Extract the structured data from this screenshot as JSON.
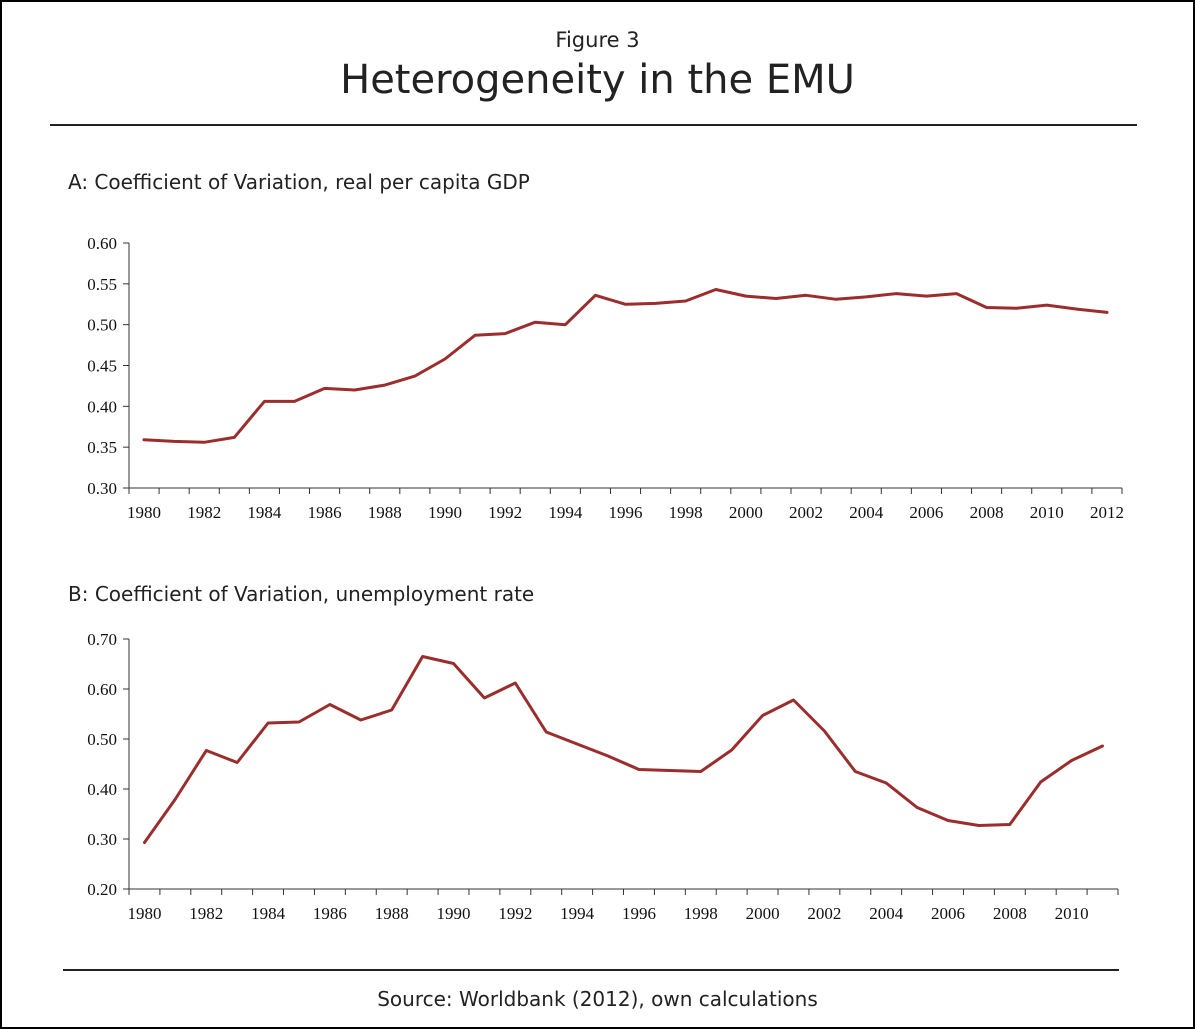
{
  "header": {
    "figure_label": "Figure 3",
    "title": "Heterogeneity in the EMU"
  },
  "footer": {
    "source": "Source: Worldbank (2012), own calculations"
  },
  "colors": {
    "series": "#9b2d2d"
  },
  "chart_data": [
    {
      "type": "line",
      "title": "A: Coefficient of Variation, real per capita GDP",
      "xlabel": "",
      "ylabel": "",
      "x": [
        1980,
        1981,
        1982,
        1983,
        1984,
        1985,
        1986,
        1987,
        1988,
        1989,
        1990,
        1991,
        1992,
        1993,
        1994,
        1995,
        1996,
        1997,
        1998,
        1999,
        2000,
        2001,
        2002,
        2003,
        2004,
        2005,
        2006,
        2007,
        2008,
        2009,
        2010,
        2011,
        2012
      ],
      "values": [
        0.359,
        0.357,
        0.356,
        0.362,
        0.406,
        0.406,
        0.422,
        0.42,
        0.426,
        0.437,
        0.458,
        0.487,
        0.489,
        0.503,
        0.5,
        0.536,
        0.525,
        0.526,
        0.529,
        0.543,
        0.535,
        0.532,
        0.536,
        0.531,
        0.534,
        0.538,
        0.535,
        0.538,
        0.521,
        0.52,
        0.524,
        0.519,
        0.515
      ],
      "ylim": [
        0.3,
        0.6
      ],
      "yticks": [
        "0.30",
        "0.35",
        "0.40",
        "0.45",
        "0.50",
        "0.55",
        "0.60"
      ],
      "xticks": [
        "1980",
        "1982",
        "1984",
        "1986",
        "1988",
        "1990",
        "1992",
        "1994",
        "1996",
        "1998",
        "2000",
        "2002",
        "2004",
        "2006",
        "2008",
        "2010",
        "2012"
      ],
      "legend": "none",
      "grid": false
    },
    {
      "type": "line",
      "title": "B: Coefficient of Variation, unemployment rate",
      "xlabel": "",
      "ylabel": "",
      "x": [
        1980,
        1981,
        1982,
        1983,
        1984,
        1985,
        1986,
        1987,
        1988,
        1989,
        1990,
        1991,
        1992,
        1993,
        1994,
        1995,
        1996,
        1997,
        1998,
        1999,
        2000,
        2001,
        2002,
        2003,
        2004,
        2005,
        2006,
        2007,
        2008,
        2009,
        2010,
        2011
      ],
      "values": [
        0.293,
        0.38,
        0.477,
        0.453,
        0.532,
        0.534,
        0.569,
        0.538,
        0.558,
        0.665,
        0.651,
        0.582,
        0.612,
        0.514,
        0.49,
        0.466,
        0.439,
        0.437,
        0.435,
        0.478,
        0.547,
        0.578,
        0.516,
        0.435,
        0.412,
        0.363,
        0.337,
        0.327,
        0.329,
        0.414,
        0.457,
        0.486
      ],
      "ylim": [
        0.2,
        0.7
      ],
      "yticks": [
        "0.20",
        "0.30",
        "0.40",
        "0.50",
        "0.60",
        "0.70"
      ],
      "xticks": [
        "1980",
        "1982",
        "1984",
        "1986",
        "1988",
        "1990",
        "1992",
        "1994",
        "1996",
        "1998",
        "2000",
        "2002",
        "2004",
        "2006",
        "2008",
        "2010"
      ],
      "legend": "none",
      "grid": false
    }
  ]
}
